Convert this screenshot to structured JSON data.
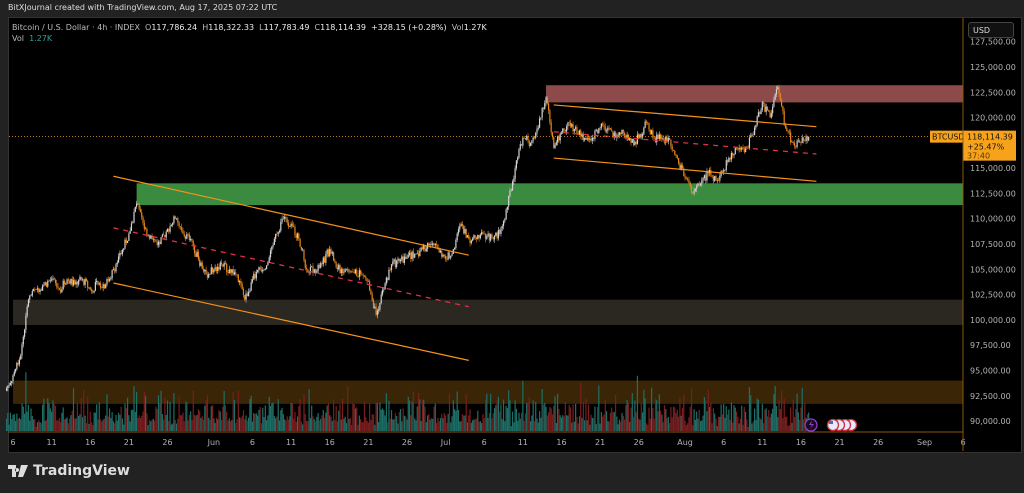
{
  "credit": "BitXJournal created with TradingView.com, Aug 17, 2025 07:22 UTC",
  "legend": {
    "symbol": "Bitcoin / U.S. Dollar · 4h · INDEX",
    "o_label": "O",
    "open": "117,786.24",
    "h_label": "H",
    "high": "118,322.33",
    "l_label": "L",
    "low": "117,783.49",
    "c_label": "C",
    "close": "118,114.39",
    "change": "+328.15 (+0.28%)",
    "vol_label": "Vol",
    "vol": "1.27K"
  },
  "volume_legend": {
    "label": "Vol",
    "value": "1.27K"
  },
  "currency_button": "USD",
  "price_badge": {
    "symbol": "BTCUSD",
    "price": "118,114.39",
    "change_pct": "+25.47%",
    "countdown": "37:40"
  },
  "branding": "TradingView",
  "colors": {
    "up": "#d4d4d4",
    "down": "#e8861a",
    "badge": "#f7a21b",
    "trendline": "#f7931a",
    "midline": "#e0304a",
    "vol_up": "#1f6f67",
    "vol_down": "#7a1f1f"
  },
  "chart_data": {
    "type": "candlestick",
    "symbol": "BTCUSD",
    "interval": "4h",
    "start_date": "2025-05-06",
    "daily_close": [
      94500,
      96500,
      102000,
      103000,
      103500,
      104000,
      103000,
      104000,
      103500,
      104000,
      103000,
      103500,
      103500,
      105000,
      106500,
      108500,
      111500,
      109000,
      108000,
      107500,
      109000,
      110000,
      108500,
      108000,
      106000,
      104500,
      105000,
      105500,
      105000,
      104500,
      102000,
      104000,
      105000,
      105700,
      108500,
      110000,
      109500,
      108000,
      105000,
      105000,
      105500,
      107000,
      105000,
      105000,
      104700,
      104500,
      103800,
      100500,
      103000,
      105500,
      105800,
      106200,
      106500,
      107000,
      107500,
      107000,
      106000,
      107000,
      109500,
      108000,
      108000,
      108500,
      108200,
      108500,
      111200,
      115000,
      118000,
      117500,
      119000,
      122000,
      117000,
      118500,
      119500,
      118500,
      118000,
      118000,
      119000,
      119000,
      118000,
      118500,
      117500,
      118000,
      119500,
      118000,
      118000,
      117800,
      116000,
      114000,
      112500,
      113500,
      114500,
      113800,
      114800,
      116500,
      117000,
      117000,
      119000,
      121500,
      120000,
      123000,
      119000,
      117500,
      117500,
      118114
    ],
    "y_axis": {
      "ticks": [
        "127,500.00",
        "125,000.00",
        "122,500.00",
        "120,000.00",
        "115,000.00",
        "112,500.00",
        "110,000.00",
        "107,500.00",
        "105,000.00",
        "102,500.00",
        "100,000.00",
        "97,500.00",
        "95,000.00",
        "92,500.00",
        "90,000.00"
      ],
      "range": [
        88000,
        128500
      ]
    },
    "x_axis": {
      "ticks": [
        {
          "label": "6",
          "date": "2025-05-06"
        },
        {
          "label": "11",
          "date": "2025-05-11"
        },
        {
          "label": "16",
          "date": "2025-05-16"
        },
        {
          "label": "21",
          "date": "2025-05-21"
        },
        {
          "label": "26",
          "date": "2025-05-26"
        },
        {
          "label": "Jun",
          "date": "2025-06-01"
        },
        {
          "label": "6",
          "date": "2025-06-06"
        },
        {
          "label": "11",
          "date": "2025-06-11"
        },
        {
          "label": "16",
          "date": "2025-06-16"
        },
        {
          "label": "21",
          "date": "2025-06-21"
        },
        {
          "label": "26",
          "date": "2025-06-26"
        },
        {
          "label": "Jul",
          "date": "2025-07-01"
        },
        {
          "label": "6",
          "date": "2025-07-06"
        },
        {
          "label": "11",
          "date": "2025-07-11"
        },
        {
          "label": "16",
          "date": "2025-07-16"
        },
        {
          "label": "21",
          "date": "2025-07-21"
        },
        {
          "label": "26",
          "date": "2025-07-26"
        },
        {
          "label": "Aug",
          "date": "2025-08-01"
        },
        {
          "label": "6",
          "date": "2025-08-06"
        },
        {
          "label": "11",
          "date": "2025-08-11"
        },
        {
          "label": "16",
          "date": "2025-08-16"
        },
        {
          "label": "21",
          "date": "2025-08-21"
        },
        {
          "label": "26",
          "date": "2025-08-26"
        },
        {
          "label": "Sep",
          "date": "2025-09-01"
        },
        {
          "label": "6",
          "date": "2025-09-06"
        }
      ]
    },
    "zones": [
      {
        "name": "resistance",
        "from": "2025-07-14",
        "top": 123200,
        "bottom": 121500,
        "color": "#8c4a4a"
      },
      {
        "name": "support",
        "from": "2025-05-22",
        "top": 113500,
        "bottom": 111350,
        "color": "#3a8a40"
      },
      {
        "name": "support-lower",
        "from": "2025-05-06",
        "top": 102000,
        "bottom": 99500,
        "color": "#2a2820"
      },
      {
        "name": "deep-support",
        "from": "2025-05-06",
        "top": 94000,
        "bottom": 91700,
        "color": "#3a2606"
      }
    ],
    "trendlines": [
      {
        "style": "solid",
        "color": "#f7931a",
        "p1": [
          "2025-05-19",
          114200
        ],
        "p2": [
          "2025-07-04",
          106400
        ]
      },
      {
        "style": "solid",
        "color": "#f7931a",
        "p1": [
          "2025-05-19",
          103650
        ],
        "p2": [
          "2025-07-04",
          96000
        ]
      },
      {
        "style": "dashed",
        "color": "#e0304a",
        "p1": [
          "2025-05-19",
          109100
        ],
        "p2": [
          "2025-07-04",
          101300
        ]
      },
      {
        "style": "solid",
        "color": "#f7931a",
        "p1": [
          "2025-07-15",
          121250
        ],
        "p2": [
          "2025-08-18",
          119100
        ]
      },
      {
        "style": "solid",
        "color": "#f7931a",
        "p1": [
          "2025-07-15",
          116000
        ],
        "p2": [
          "2025-08-18",
          113700
        ]
      },
      {
        "style": "dashed",
        "color": "#e0304a",
        "p1": [
          "2025-07-15",
          118600
        ],
        "p2": [
          "2025-08-18",
          116400
        ]
      }
    ],
    "last_price": 118114.39
  }
}
